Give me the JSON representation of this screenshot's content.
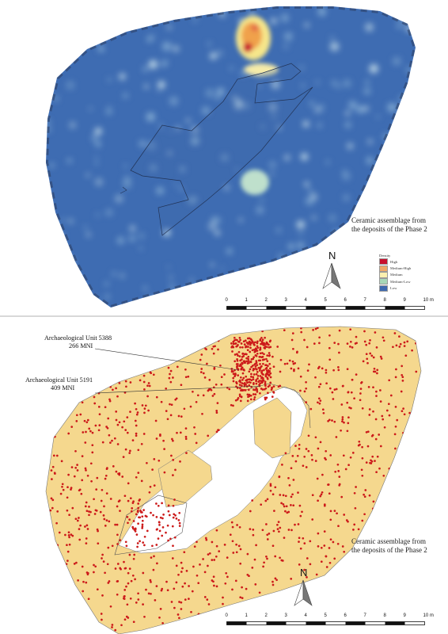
{
  "top_map": {
    "caption_line1": "Ceramic assemblage from",
    "caption_line2": "the deposits of the Phase 2",
    "legend": {
      "title": "Density",
      "items": [
        {
          "label": "High",
          "color": "#c8102e"
        },
        {
          "label": "Medium-High",
          "color": "#f0a868"
        },
        {
          "label": "Medium",
          "color": "#fbf0b0"
        },
        {
          "label": "Medium-Low",
          "color": "#a8d8b8"
        },
        {
          "label": "Low",
          "color": "#3f6ab0"
        }
      ]
    }
  },
  "bottom_map": {
    "caption_line1": "Ceramic assemblage from",
    "caption_line2": "the deposits of the Phase 2",
    "unit_a": {
      "name": "Archaeological Unit 5388",
      "count": "266 MNI"
    },
    "unit_b": {
      "name": "Archaeological Unit 5191",
      "count": "409 MNI"
    },
    "colors": {
      "fill": "#f5d88e",
      "points": "#cc1a1a"
    }
  },
  "north_label": "N",
  "scale": {
    "ticks": [
      "0",
      "1",
      "2",
      "3",
      "4",
      "5",
      "6",
      "7",
      "8",
      "9",
      "10 m"
    ]
  }
}
